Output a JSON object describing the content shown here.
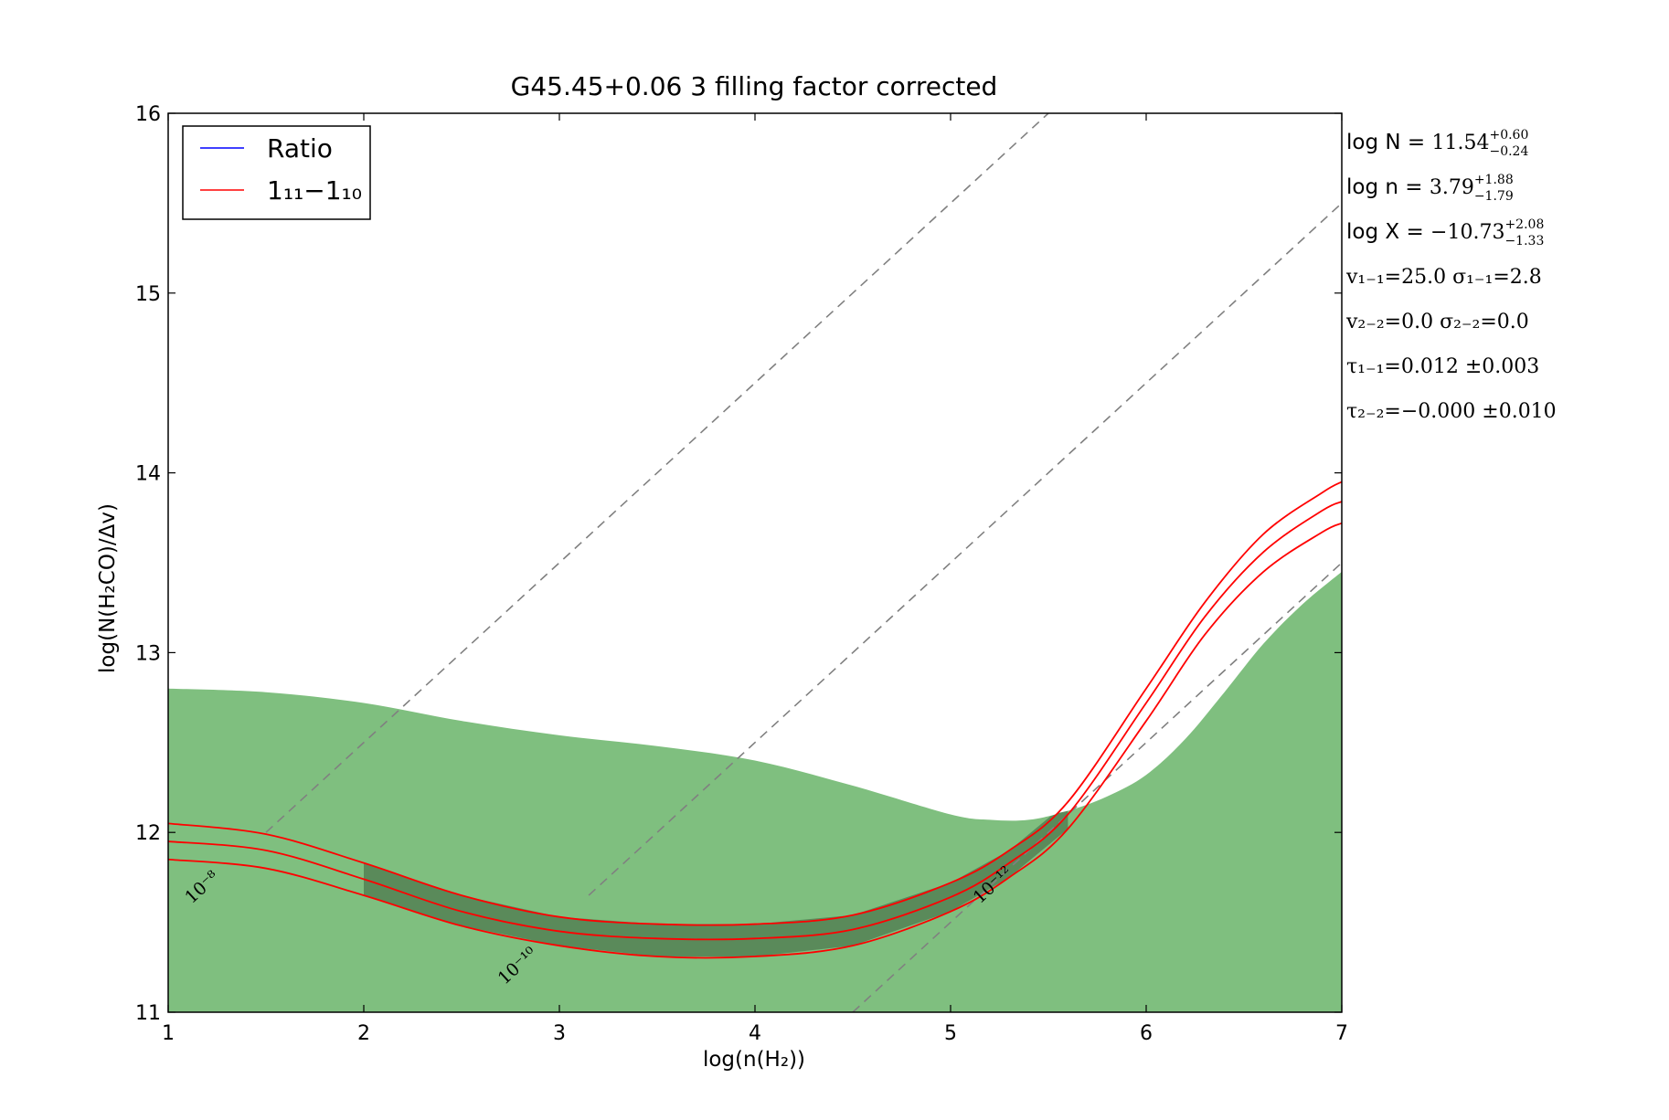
{
  "chart_data": {
    "type": "line",
    "title": "G45.45+0.06 3 filling factor corrected",
    "xlabel": "log(n(H₂))",
    "ylabel": "log(N(H₂CO)/Δv)",
    "xlim": [
      1,
      7
    ],
    "ylim": [
      11,
      16
    ],
    "xticks": [
      "1",
      "2",
      "3",
      "4",
      "5",
      "6",
      "7"
    ],
    "yticks": [
      "11",
      "12",
      "13",
      "14",
      "15",
      "16"
    ],
    "legend": {
      "placement": "top-left",
      "entries": [
        {
          "label": "Ratio",
          "color": "#0000ff"
        },
        {
          "label": "1₁₁−1₁₀",
          "color": "#ff0000"
        }
      ]
    },
    "colors": {
      "ratio": "#0000ff",
      "line_1_11": "#ff0000",
      "region_fill": "#7fbf7f",
      "overlap_fill": "#5a8a5a",
      "abundance_lines": "#808080"
    },
    "annotations": [
      {
        "label": "log N = ",
        "math": "11.54",
        "sup": "+0.60",
        "sub": "−0.24"
      },
      {
        "label": "log n = ",
        "math": "3.79",
        "sup": "+1.88",
        "sub": "−1.79"
      },
      {
        "label": "log X = ",
        "math": "−10.73",
        "sup": "+2.08",
        "sub": "−1.33"
      },
      {
        "text": "v₁₋₁=25.0   σ₁₋₁=2.8"
      },
      {
        "text": "v₂₋₂=0.0   σ₂₋₂=0.0"
      },
      {
        "text": "τ₁₋₁=0.012 ±0.003"
      },
      {
        "text": "τ₂₋₂=−0.000 ±0.010"
      }
    ],
    "abundance_lines": [
      {
        "label": "10⁻⁸",
        "x": [
          1.5,
          7.0
        ],
        "y": [
          12.0,
          17.5
        ]
      },
      {
        "label": "10⁻¹⁰",
        "x": [
          3.15,
          7.0
        ],
        "y": [
          11.65,
          15.5
        ]
      },
      {
        "label": "10⁻¹²",
        "x": [
          4.5,
          7.0
        ],
        "y": [
          11.0,
          13.5
        ]
      }
    ],
    "contour_label_positions": [
      {
        "label": "10⁻⁸",
        "x": 1.12,
        "y": 11.6
      },
      {
        "label": "10⁻¹⁰",
        "x": 2.72,
        "y": 11.15
      },
      {
        "label": "10⁻¹²",
        "x": 5.15,
        "y": 11.6
      }
    ],
    "green_region_upper": {
      "x": [
        1.0,
        1.5,
        2.0,
        2.5,
        3.0,
        3.5,
        4.0,
        4.5,
        5.0,
        5.2,
        5.4,
        5.6,
        5.8,
        6.0,
        6.2,
        6.4,
        6.6,
        6.8,
        7.0
      ],
      "y": [
        12.8,
        12.78,
        12.72,
        12.62,
        12.54,
        12.48,
        12.4,
        12.26,
        12.1,
        12.07,
        12.07,
        12.12,
        12.2,
        12.32,
        12.52,
        12.78,
        13.05,
        13.27,
        13.45
      ]
    },
    "series": [
      {
        "name": "1₁₁−1₁₀",
        "lines": [
          {
            "x": [
              1.0,
              1.5,
              2.0,
              2.5,
              3.0,
              3.5,
              4.0,
              4.5,
              5.0,
              5.3,
              5.6,
              6.0,
              6.3,
              6.6,
              6.9,
              7.0
            ],
            "y": [
              12.05,
              11.99,
              11.83,
              11.65,
              11.53,
              11.49,
              11.49,
              11.54,
              11.72,
              11.9,
              12.17,
              12.8,
              13.28,
              13.66,
              13.89,
              13.95
            ]
          },
          {
            "x": [
              1.0,
              1.5,
              2.0,
              2.5,
              3.0,
              3.5,
              4.0,
              4.5,
              5.0,
              5.3,
              5.6,
              6.0,
              6.3,
              6.6,
              6.9,
              7.0
            ],
            "y": [
              11.95,
              11.9,
              11.74,
              11.56,
              11.45,
              11.41,
              11.41,
              11.46,
              11.64,
              11.83,
              12.1,
              12.72,
              13.2,
              13.56,
              13.79,
              13.84
            ]
          },
          {
            "x": [
              1.0,
              1.5,
              2.0,
              2.5,
              3.0,
              3.5,
              4.0,
              4.5,
              5.0,
              5.3,
              5.6,
              6.0,
              6.3,
              6.6,
              6.9,
              7.0
            ],
            "y": [
              11.85,
              11.8,
              11.65,
              11.48,
              11.37,
              11.31,
              11.31,
              11.37,
              11.56,
              11.75,
              12.02,
              12.62,
              13.1,
              13.45,
              13.67,
              13.72
            ]
          }
        ]
      }
    ],
    "overlap_region": {
      "x_start": 2.0,
      "x_end": 5.6
    }
  }
}
